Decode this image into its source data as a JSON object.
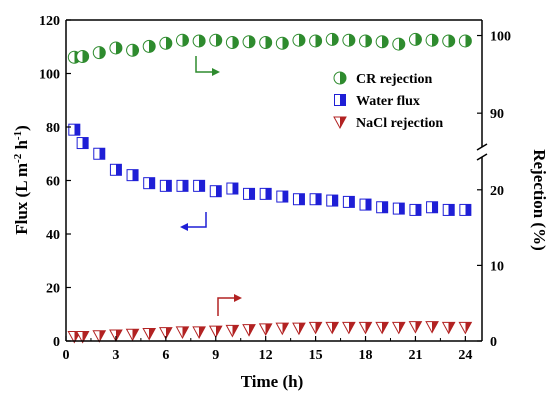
{
  "chart_data": {
    "type": "scatter",
    "xlabel": "Time (h)",
    "ylabel_left_parts": [
      "Flux (L m",
      "-2",
      " h",
      "-1",
      ")"
    ],
    "ylabel_right": "Rejection (%)",
    "x_ticks": [
      0,
      3,
      6,
      9,
      12,
      15,
      18,
      21,
      24
    ],
    "xlim": [
      0,
      25
    ],
    "y_left_ticks": [
      0,
      20,
      40,
      60,
      80,
      100,
      120
    ],
    "y_left_lim": [
      0,
      120
    ],
    "y_right_ticks_lower": [
      0,
      10,
      20
    ],
    "y_right_lim_lower": [
      0,
      25
    ],
    "y_right_ticks_upper": [
      90,
      100
    ],
    "y_right_lim_upper": [
      85,
      102
    ],
    "legend_position": "top-right",
    "series": [
      {
        "name": "CR rejection",
        "axis": "right",
        "marker": "circle-half",
        "color": "#2e8b2e",
        "x": [
          0.5,
          1,
          2,
          3,
          4,
          5,
          6,
          7,
          8,
          9,
          10,
          11,
          12,
          13,
          14,
          15,
          16,
          17,
          18,
          19,
          20,
          21,
          22,
          23,
          24
        ],
        "values": [
          97.2,
          97.3,
          97.8,
          98.4,
          98.1,
          98.6,
          99.0,
          99.4,
          99.3,
          99.4,
          99.1,
          99.2,
          99.1,
          99.0,
          99.4,
          99.3,
          99.5,
          99.4,
          99.3,
          99.2,
          98.9,
          99.5,
          99.4,
          99.3,
          99.3
        ]
      },
      {
        "name": "Water flux",
        "axis": "left",
        "marker": "square-half",
        "color": "#1f1fd6",
        "x": [
          0.5,
          1,
          2,
          3,
          4,
          5,
          6,
          7,
          8,
          9,
          10,
          11,
          12,
          13,
          14,
          15,
          16,
          17,
          18,
          19,
          20,
          21,
          22,
          23,
          24
        ],
        "values": [
          79,
          74,
          70,
          64,
          62,
          59,
          58,
          58,
          58,
          56,
          57,
          55,
          55,
          54,
          53,
          53,
          52.5,
          52,
          51,
          50,
          49.5,
          49,
          50,
          49,
          49
        ]
      },
      {
        "name": "NaCl rejection",
        "axis": "right",
        "marker": "triangle-down",
        "color": "#b22222",
        "x": [
          0.5,
          1,
          2,
          3,
          4,
          5,
          6,
          7,
          8,
          9,
          10,
          11,
          12,
          13,
          14,
          15,
          16,
          17,
          18,
          19,
          20,
          21,
          22,
          23,
          24
        ],
        "values": [
          0.6,
          0.6,
          0.7,
          0.8,
          0.9,
          1.0,
          1.1,
          1.2,
          1.2,
          1.3,
          1.4,
          1.5,
          1.6,
          1.7,
          1.7,
          1.8,
          1.8,
          1.8,
          1.8,
          1.8,
          1.8,
          1.9,
          1.9,
          1.8,
          1.8
        ]
      }
    ]
  }
}
